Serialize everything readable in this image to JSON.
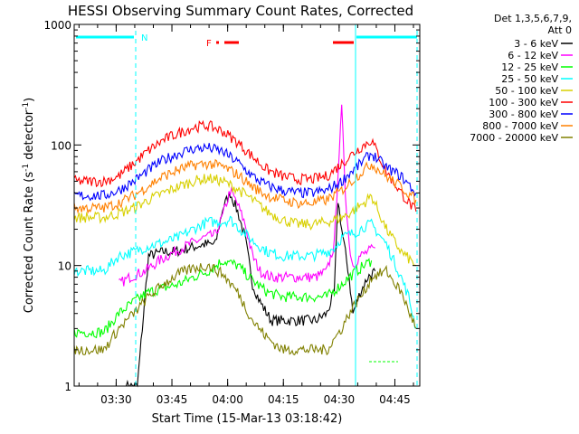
{
  "chart_data": {
    "type": "line",
    "title": "HESSI Observing Summary Count Rates, Corrected",
    "xlabel": "Start Time (15-Mar-13 03:18:42)",
    "ylabel_parts": [
      "Corrected Count Rate (s",
      "-1",
      " detector",
      "-1",
      ")"
    ],
    "y_scale": "log",
    "ylim": [
      1,
      1000
    ],
    "xlim_minutes": [
      0,
      93
    ],
    "y_ticks": [
      {
        "value": 1,
        "label": "1"
      },
      {
        "value": 10,
        "label": "10"
      },
      {
        "value": 100,
        "label": "100"
      },
      {
        "value": 1000,
        "label": "1000"
      }
    ],
    "x_ticks": [
      {
        "minutes": 11.3,
        "label": "03:30"
      },
      {
        "minutes": 26.3,
        "label": "03:45"
      },
      {
        "minutes": 41.3,
        "label": "04:00"
      },
      {
        "minutes": 56.3,
        "label": "04:15"
      },
      {
        "minutes": 71.3,
        "label": "04:30"
      },
      {
        "minutes": 86.3,
        "label": "04:45"
      }
    ],
    "legend": {
      "header": [
        "Det 1,3,5,6,7,9,",
        "Att 0"
      ],
      "entries": [
        {
          "label": "3 - 6 keV",
          "color": "#000000"
        },
        {
          "label": "6 - 12 keV",
          "color": "#ff00ff"
        },
        {
          "label": "12 - 25 keV",
          "color": "#00ff00"
        },
        {
          "label": "25 - 50 keV",
          "color": "#00ffff"
        },
        {
          "label": "50 - 100 keV",
          "color": "#d8d000"
        },
        {
          "label": "100 - 300 keV",
          "color": "#ff0000"
        },
        {
          "label": "300 - 800 keV",
          "color": "#0000ff"
        },
        {
          "label": "800 - 7000 keV",
          "color": "#ff8000"
        },
        {
          "label": "7000 - 20000 keV",
          "color": "#808000"
        }
      ]
    },
    "annotations": [
      {
        "text": "N",
        "color": "#00ffff"
      },
      {
        "text": "F",
        "color": "#ff0000"
      }
    ],
    "series": [
      {
        "name": "3 - 6 keV",
        "color": "#000000",
        "x": [
          14,
          17,
          20,
          24,
          27,
          31,
          35,
          38,
          40,
          42,
          44,
          46,
          48,
          50,
          53,
          56,
          59,
          62,
          65,
          68,
          70,
          71,
          72,
          74,
          75,
          77,
          79,
          81
        ],
        "y": [
          1,
          1,
          12,
          13,
          13,
          14,
          15,
          15,
          30,
          40,
          28,
          17,
          7,
          5,
          3.5,
          3.5,
          3.5,
          3.5,
          3.5,
          4,
          6,
          35,
          20,
          8,
          4,
          6,
          8,
          9
        ]
      },
      {
        "name": "6 - 12 keV",
        "color": "#ff00ff",
        "x": [
          12,
          15,
          19,
          23,
          27,
          31,
          35,
          38,
          40,
          42,
          44,
          46,
          48,
          50,
          53,
          56,
          59,
          62,
          65,
          68,
          70,
          71,
          72,
          73,
          74,
          75,
          77,
          79,
          81
        ],
        "y": [
          7,
          8,
          9,
          11,
          13,
          15,
          17,
          18,
          26,
          42,
          32,
          22,
          12,
          9,
          8,
          8,
          8,
          8,
          8,
          9,
          15,
          60,
          200,
          40,
          15,
          10,
          12,
          13,
          14
        ]
      },
      {
        "name": "12 - 25 keV",
        "color": "#00ff00",
        "x": [
          0,
          4,
          8,
          12,
          16,
          20,
          24,
          28,
          32,
          36,
          40,
          44,
          48,
          52,
          56,
          60,
          64,
          68,
          72,
          74,
          76,
          78,
          80
        ],
        "y": [
          2.8,
          2.8,
          2.8,
          4,
          5,
          6,
          6.5,
          7,
          8,
          9,
          11,
          10,
          7.5,
          6,
          5.5,
          5.5,
          5.5,
          5.5,
          7,
          8,
          9,
          10,
          11
        ]
      },
      {
        "name": "25 - 50 keV",
        "color": "#00ffff",
        "x": [
          0,
          4,
          8,
          12,
          16,
          20,
          24,
          28,
          32,
          36,
          40,
          42,
          44,
          48,
          52,
          56,
          60,
          64,
          68,
          70,
          72,
          74,
          76,
          78,
          80,
          84,
          88,
          90,
          92
        ],
        "y": [
          9,
          9,
          9,
          12,
          13,
          14.5,
          15.5,
          17,
          20,
          23,
          23,
          24,
          21,
          16,
          13,
          12,
          12,
          12,
          13,
          14,
          17,
          18,
          19,
          21,
          22,
          15,
          8,
          5.5,
          3
        ]
      },
      {
        "name": "50 - 100 keV",
        "color": "#d8d000",
        "x": [
          0,
          4,
          8,
          12,
          16,
          20,
          24,
          28,
          32,
          36,
          40,
          44,
          48,
          52,
          56,
          60,
          64,
          68,
          72,
          74,
          76,
          78,
          80,
          84,
          88,
          92
        ],
        "y": [
          25,
          25,
          25,
          27,
          30,
          35,
          40,
          45,
          50,
          53,
          50,
          43,
          35,
          28,
          24,
          22,
          22,
          23,
          25,
          27,
          30,
          33,
          38,
          20,
          13,
          10
        ]
      },
      {
        "name": "100 - 300 keV",
        "color": "#ff0000",
        "x": [
          0,
          4,
          8,
          12,
          16,
          20,
          24,
          28,
          32,
          36,
          40,
          44,
          48,
          52,
          56,
          60,
          64,
          68,
          72,
          74,
          76,
          78,
          80,
          84,
          88,
          92
        ],
        "y": [
          50,
          50,
          50,
          55,
          70,
          90,
          110,
          125,
          140,
          145,
          130,
          105,
          80,
          62,
          55,
          52,
          52,
          55,
          70,
          80,
          90,
          100,
          110,
          60,
          40,
          28
        ]
      },
      {
        "name": "300 - 800 keV",
        "color": "#0000ff",
        "x": [
          0,
          4,
          8,
          12,
          16,
          20,
          24,
          28,
          32,
          36,
          40,
          44,
          48,
          52,
          56,
          60,
          64,
          68,
          72,
          74,
          76,
          78,
          80,
          84,
          88,
          92
        ],
        "y": [
          38,
          38,
          38,
          42,
          50,
          62,
          75,
          85,
          93,
          95,
          88,
          72,
          55,
          46,
          42,
          40,
          40,
          42,
          50,
          58,
          65,
          75,
          85,
          65,
          55,
          40
        ]
      },
      {
        "name": "800 - 7000 keV",
        "color": "#ff8000",
        "x": [
          0,
          4,
          8,
          12,
          16,
          20,
          24,
          28,
          32,
          36,
          40,
          44,
          48,
          52,
          56,
          60,
          64,
          68,
          72,
          74,
          76,
          78,
          80,
          84,
          88,
          92
        ],
        "y": [
          30,
          30,
          30,
          33,
          38,
          46,
          55,
          62,
          68,
          70,
          66,
          57,
          45,
          38,
          35,
          33,
          33,
          35,
          42,
          48,
          55,
          62,
          70,
          55,
          45,
          35
        ]
      },
      {
        "name": "7000 - 20000 keV",
        "color": "#808000",
        "x": [
          0,
          4,
          8,
          12,
          16,
          20,
          24,
          28,
          32,
          36,
          40,
          44,
          48,
          52,
          56,
          60,
          64,
          68,
          72,
          74,
          76,
          78,
          80,
          84,
          88,
          92
        ],
        "y": [
          2,
          2,
          2,
          3,
          4,
          5.5,
          7,
          8.5,
          9.5,
          10,
          8.5,
          6,
          3.5,
          2.5,
          2,
          2,
          2,
          2,
          3,
          4,
          5,
          6,
          8,
          9,
          6,
          3
        ]
      }
    ]
  }
}
